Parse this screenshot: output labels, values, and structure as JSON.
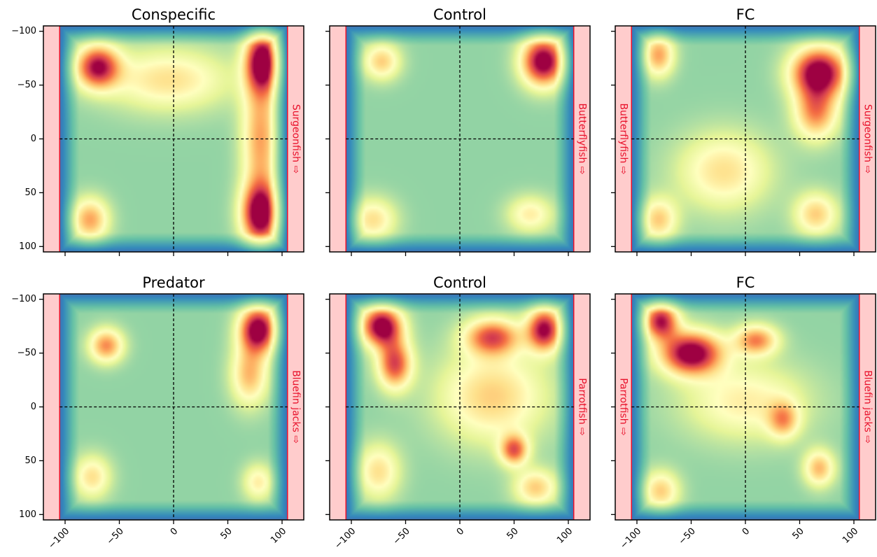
{
  "colors": {
    "wall_fill": "#ffcccc",
    "wall_edge": "#e8102a",
    "wall_text": "#e8102a",
    "divider": "#000000",
    "colormap": "Spectral_r"
  },
  "chart_data": [
    {
      "type": "heatmap",
      "title": "Conspecific",
      "xlim": [
        -120,
        120
      ],
      "ylim": [
        -105,
        105
      ],
      "x_ticks": [
        -100,
        -50,
        0,
        50,
        100
      ],
      "y_ticks": [
        -100,
        -50,
        0,
        50,
        100
      ],
      "x_tick_labels": [],
      "y_tick_labels": [
        "100",
        "50",
        "0",
        "−50",
        "−100"
      ],
      "left_wall": {
        "range": [
          -120,
          -105
        ],
        "label": ""
      },
      "right_wall": {
        "range": [
          105,
          120
        ],
        "label": "Surgeonfish ⇨"
      },
      "dividers": {
        "x": 0,
        "y": 0
      },
      "hotspots": [
        {
          "x": -70,
          "y": 67,
          "intensity": 0.85,
          "sx": 14,
          "sy": 14
        },
        {
          "x": 82,
          "y": 72,
          "intensity": 1.0,
          "sx": 11,
          "sy": 20
        },
        {
          "x": 80,
          "y": -70,
          "intensity": 1.0,
          "sx": 12,
          "sy": 20
        },
        {
          "x": -77,
          "y": -75,
          "intensity": 0.55,
          "sx": 12,
          "sy": 14
        },
        {
          "x": 80,
          "y": 0,
          "intensity": 0.55,
          "sx": 12,
          "sy": 40
        },
        {
          "x": -5,
          "y": 55,
          "intensity": 0.4,
          "sx": 40,
          "sy": 20
        }
      ]
    },
    {
      "type": "heatmap",
      "title": "Control",
      "xlim": [
        -120,
        120
      ],
      "ylim": [
        -105,
        105
      ],
      "x_ticks": [
        -100,
        -50,
        0,
        50,
        100
      ],
      "y_ticks": [
        -100,
        -50,
        0,
        50,
        100
      ],
      "x_tick_labels": [],
      "y_tick_labels": [],
      "left_wall": {
        "range": [
          -120,
          -105
        ],
        "label": ""
      },
      "right_wall": {
        "range": [
          105,
          120
        ],
        "label": "Butterflyfish ⇨"
      },
      "dividers": {
        "x": 0,
        "y": 0
      },
      "hotspots": [
        {
          "x": 77,
          "y": 72,
          "intensity": 1.0,
          "sx": 14,
          "sy": 16
        },
        {
          "x": -72,
          "y": 72,
          "intensity": 0.45,
          "sx": 12,
          "sy": 12
        },
        {
          "x": -80,
          "y": -75,
          "intensity": 0.4,
          "sx": 15,
          "sy": 14
        },
        {
          "x": 65,
          "y": -70,
          "intensity": 0.35,
          "sx": 15,
          "sy": 12
        }
      ]
    },
    {
      "type": "heatmap",
      "title": "FC",
      "xlim": [
        -120,
        120
      ],
      "ylim": [
        -105,
        105
      ],
      "x_ticks": [
        -100,
        -50,
        0,
        50,
        100
      ],
      "y_ticks": [
        -100,
        -50,
        0,
        50,
        100
      ],
      "x_tick_labels": [],
      "y_tick_labels": [],
      "left_wall": {
        "range": [
          -120,
          -105
        ],
        "label": "Butterflyfish ⇨"
      },
      "right_wall": {
        "range": [
          105,
          120
        ],
        "label": "Surgeonfish ⇨"
      },
      "dividers": {
        "x": 0,
        "y": 0
      },
      "hotspots": [
        {
          "x": 68,
          "y": 62,
          "intensity": 1.0,
          "sx": 18,
          "sy": 16
        },
        {
          "x": 65,
          "y": 25,
          "intensity": 0.6,
          "sx": 14,
          "sy": 18
        },
        {
          "x": -80,
          "y": 78,
          "intensity": 0.55,
          "sx": 10,
          "sy": 14
        },
        {
          "x": -80,
          "y": -75,
          "intensity": 0.45,
          "sx": 12,
          "sy": 14
        },
        {
          "x": 65,
          "y": -70,
          "intensity": 0.45,
          "sx": 14,
          "sy": 14
        },
        {
          "x": -20,
          "y": -30,
          "intensity": 0.4,
          "sx": 30,
          "sy": 25
        }
      ]
    },
    {
      "type": "heatmap",
      "title": "Predator",
      "xlim": [
        -120,
        120
      ],
      "ylim": [
        -105,
        105
      ],
      "x_ticks": [
        -100,
        -50,
        0,
        50,
        100
      ],
      "y_ticks": [
        -100,
        -50,
        0,
        50,
        100
      ],
      "x_tick_labels": [
        "−100",
        "−50",
        "0",
        "50",
        "100"
      ],
      "y_tick_labels": [
        "100",
        "50",
        "0",
        "−50",
        "−100"
      ],
      "left_wall": {
        "range": [
          -120,
          -105
        ],
        "label": ""
      },
      "right_wall": {
        "range": [
          105,
          120
        ],
        "label": "Bluefin jacks ⇨"
      },
      "dividers": {
        "x": 0,
        "y": 0
      },
      "hotspots": [
        {
          "x": 78,
          "y": 72,
          "intensity": 1.0,
          "sx": 12,
          "sy": 15
        },
        {
          "x": 70,
          "y": 30,
          "intensity": 0.5,
          "sx": 12,
          "sy": 20
        },
        {
          "x": -62,
          "y": 57,
          "intensity": 0.6,
          "sx": 11,
          "sy": 11
        },
        {
          "x": -75,
          "y": -65,
          "intensity": 0.4,
          "sx": 12,
          "sy": 14
        },
        {
          "x": 78,
          "y": -70,
          "intensity": 0.35,
          "sx": 10,
          "sy": 12
        }
      ]
    },
    {
      "type": "heatmap",
      "title": "Control",
      "xlim": [
        -120,
        120
      ],
      "ylim": [
        -105,
        105
      ],
      "x_ticks": [
        -100,
        -50,
        0,
        50,
        100
      ],
      "y_ticks": [
        -100,
        -50,
        0,
        50,
        100
      ],
      "x_tick_labels": [
        "−100",
        "−50",
        "0",
        "50",
        "100"
      ],
      "y_tick_labels": [],
      "left_wall": {
        "range": [
          -120,
          -105
        ],
        "label": ""
      },
      "right_wall": {
        "range": [
          105,
          120
        ],
        "label": "Parrotfish ⇨"
      },
      "dividers": {
        "x": 0,
        "y": 0
      },
      "hotspots": [
        {
          "x": -72,
          "y": 75,
          "intensity": 1.0,
          "sx": 13,
          "sy": 13
        },
        {
          "x": -60,
          "y": 40,
          "intensity": 0.75,
          "sx": 11,
          "sy": 16
        },
        {
          "x": 78,
          "y": 72,
          "intensity": 0.9,
          "sx": 11,
          "sy": 14
        },
        {
          "x": 30,
          "y": 65,
          "intensity": 0.7,
          "sx": 18,
          "sy": 12
        },
        {
          "x": 50,
          "y": -40,
          "intensity": 0.65,
          "sx": 9,
          "sy": 10
        },
        {
          "x": 30,
          "y": 10,
          "intensity": 0.45,
          "sx": 35,
          "sy": 30
        },
        {
          "x": 70,
          "y": -75,
          "intensity": 0.45,
          "sx": 14,
          "sy": 12
        },
        {
          "x": -75,
          "y": -60,
          "intensity": 0.4,
          "sx": 14,
          "sy": 18
        }
      ]
    },
    {
      "type": "heatmap",
      "title": "FC",
      "xlim": [
        -120,
        120
      ],
      "ylim": [
        -105,
        105
      ],
      "x_ticks": [
        -100,
        -50,
        0,
        50,
        100
      ],
      "y_ticks": [
        -100,
        -50,
        0,
        50,
        100
      ],
      "x_tick_labels": [
        "−100",
        "−50",
        "0",
        "50",
        "100"
      ],
      "y_tick_labels": [],
      "left_wall": {
        "range": [
          -120,
          -105
        ],
        "label": "Parrotfish ⇨"
      },
      "right_wall": {
        "range": [
          105,
          120
        ],
        "label": "Bluefin jacks ⇨"
      },
      "dividers": {
        "x": 0,
        "y": 0
      },
      "hotspots": [
        {
          "x": -50,
          "y": 50,
          "intensity": 1.0,
          "sx": 20,
          "sy": 14
        },
        {
          "x": -78,
          "y": 80,
          "intensity": 0.85,
          "sx": 11,
          "sy": 12
        },
        {
          "x": 10,
          "y": 62,
          "intensity": 0.6,
          "sx": 14,
          "sy": 10
        },
        {
          "x": 35,
          "y": -12,
          "intensity": 0.45,
          "sx": 10,
          "sy": 12
        },
        {
          "x": 68,
          "y": -57,
          "intensity": 0.5,
          "sx": 10,
          "sy": 12
        },
        {
          "x": -78,
          "y": -78,
          "intensity": 0.45,
          "sx": 12,
          "sy": 13
        },
        {
          "x": 0,
          "y": 5,
          "intensity": 0.35,
          "sx": 40,
          "sy": 25
        }
      ]
    }
  ]
}
